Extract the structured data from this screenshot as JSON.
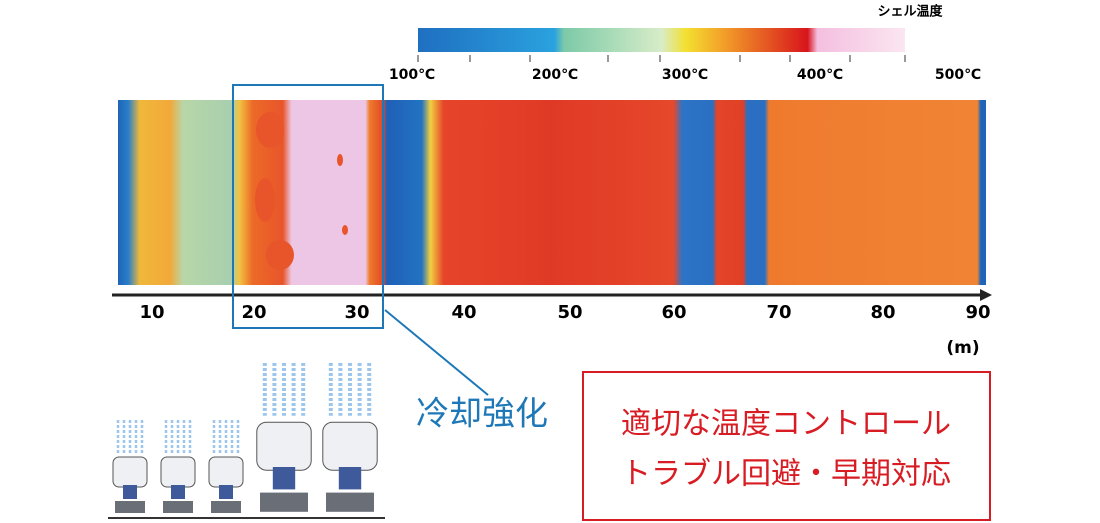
{
  "colorbar": {
    "title": "シェル温度",
    "labels": [
      "100℃",
      "200℃",
      "300℃",
      "400℃",
      "500℃"
    ]
  },
  "axis": {
    "labels": [
      "10",
      "20",
      "30",
      "40",
      "50",
      "60",
      "70",
      "80",
      "90"
    ],
    "unit": "(m)"
  },
  "annotation": "冷却強化",
  "message": {
    "lines": [
      "適切な温度コントロール",
      "トラブル回避・早期対応"
    ]
  }
}
